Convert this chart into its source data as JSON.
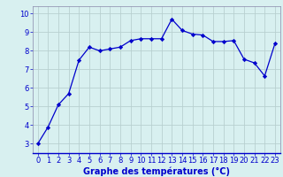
{
  "x": [
    0,
    1,
    2,
    3,
    4,
    5,
    6,
    7,
    8,
    9,
    10,
    11,
    12,
    13,
    14,
    15,
    16,
    17,
    18,
    19,
    20,
    21,
    22,
    23
  ],
  "y": [
    3.0,
    3.9,
    5.1,
    5.7,
    7.5,
    8.2,
    8.0,
    8.1,
    8.2,
    8.55,
    8.65,
    8.65,
    8.65,
    9.7,
    9.1,
    8.9,
    8.85,
    8.5,
    8.5,
    8.55,
    7.55,
    7.35,
    6.65,
    8.4
  ],
  "line_color": "#0000cc",
  "marker": "D",
  "marker_size": 2.2,
  "bg_color": "#d8f0f0",
  "grid_color": "#b8d0d0",
  "xlabel": "Graphe des températures (°C)",
  "xlabel_color": "#0000cc",
  "xlabel_fontsize": 7,
  "tick_color": "#0000cc",
  "tick_fontsize": 6,
  "yticks": [
    3,
    4,
    5,
    6,
    7,
    8,
    9,
    10
  ],
  "xticks": [
    0,
    1,
    2,
    3,
    4,
    5,
    6,
    7,
    8,
    9,
    10,
    11,
    12,
    13,
    14,
    15,
    16,
    17,
    18,
    19,
    20,
    21,
    22,
    23
  ],
  "ylim": [
    2.5,
    10.4
  ],
  "xlim": [
    -0.5,
    23.5
  ]
}
